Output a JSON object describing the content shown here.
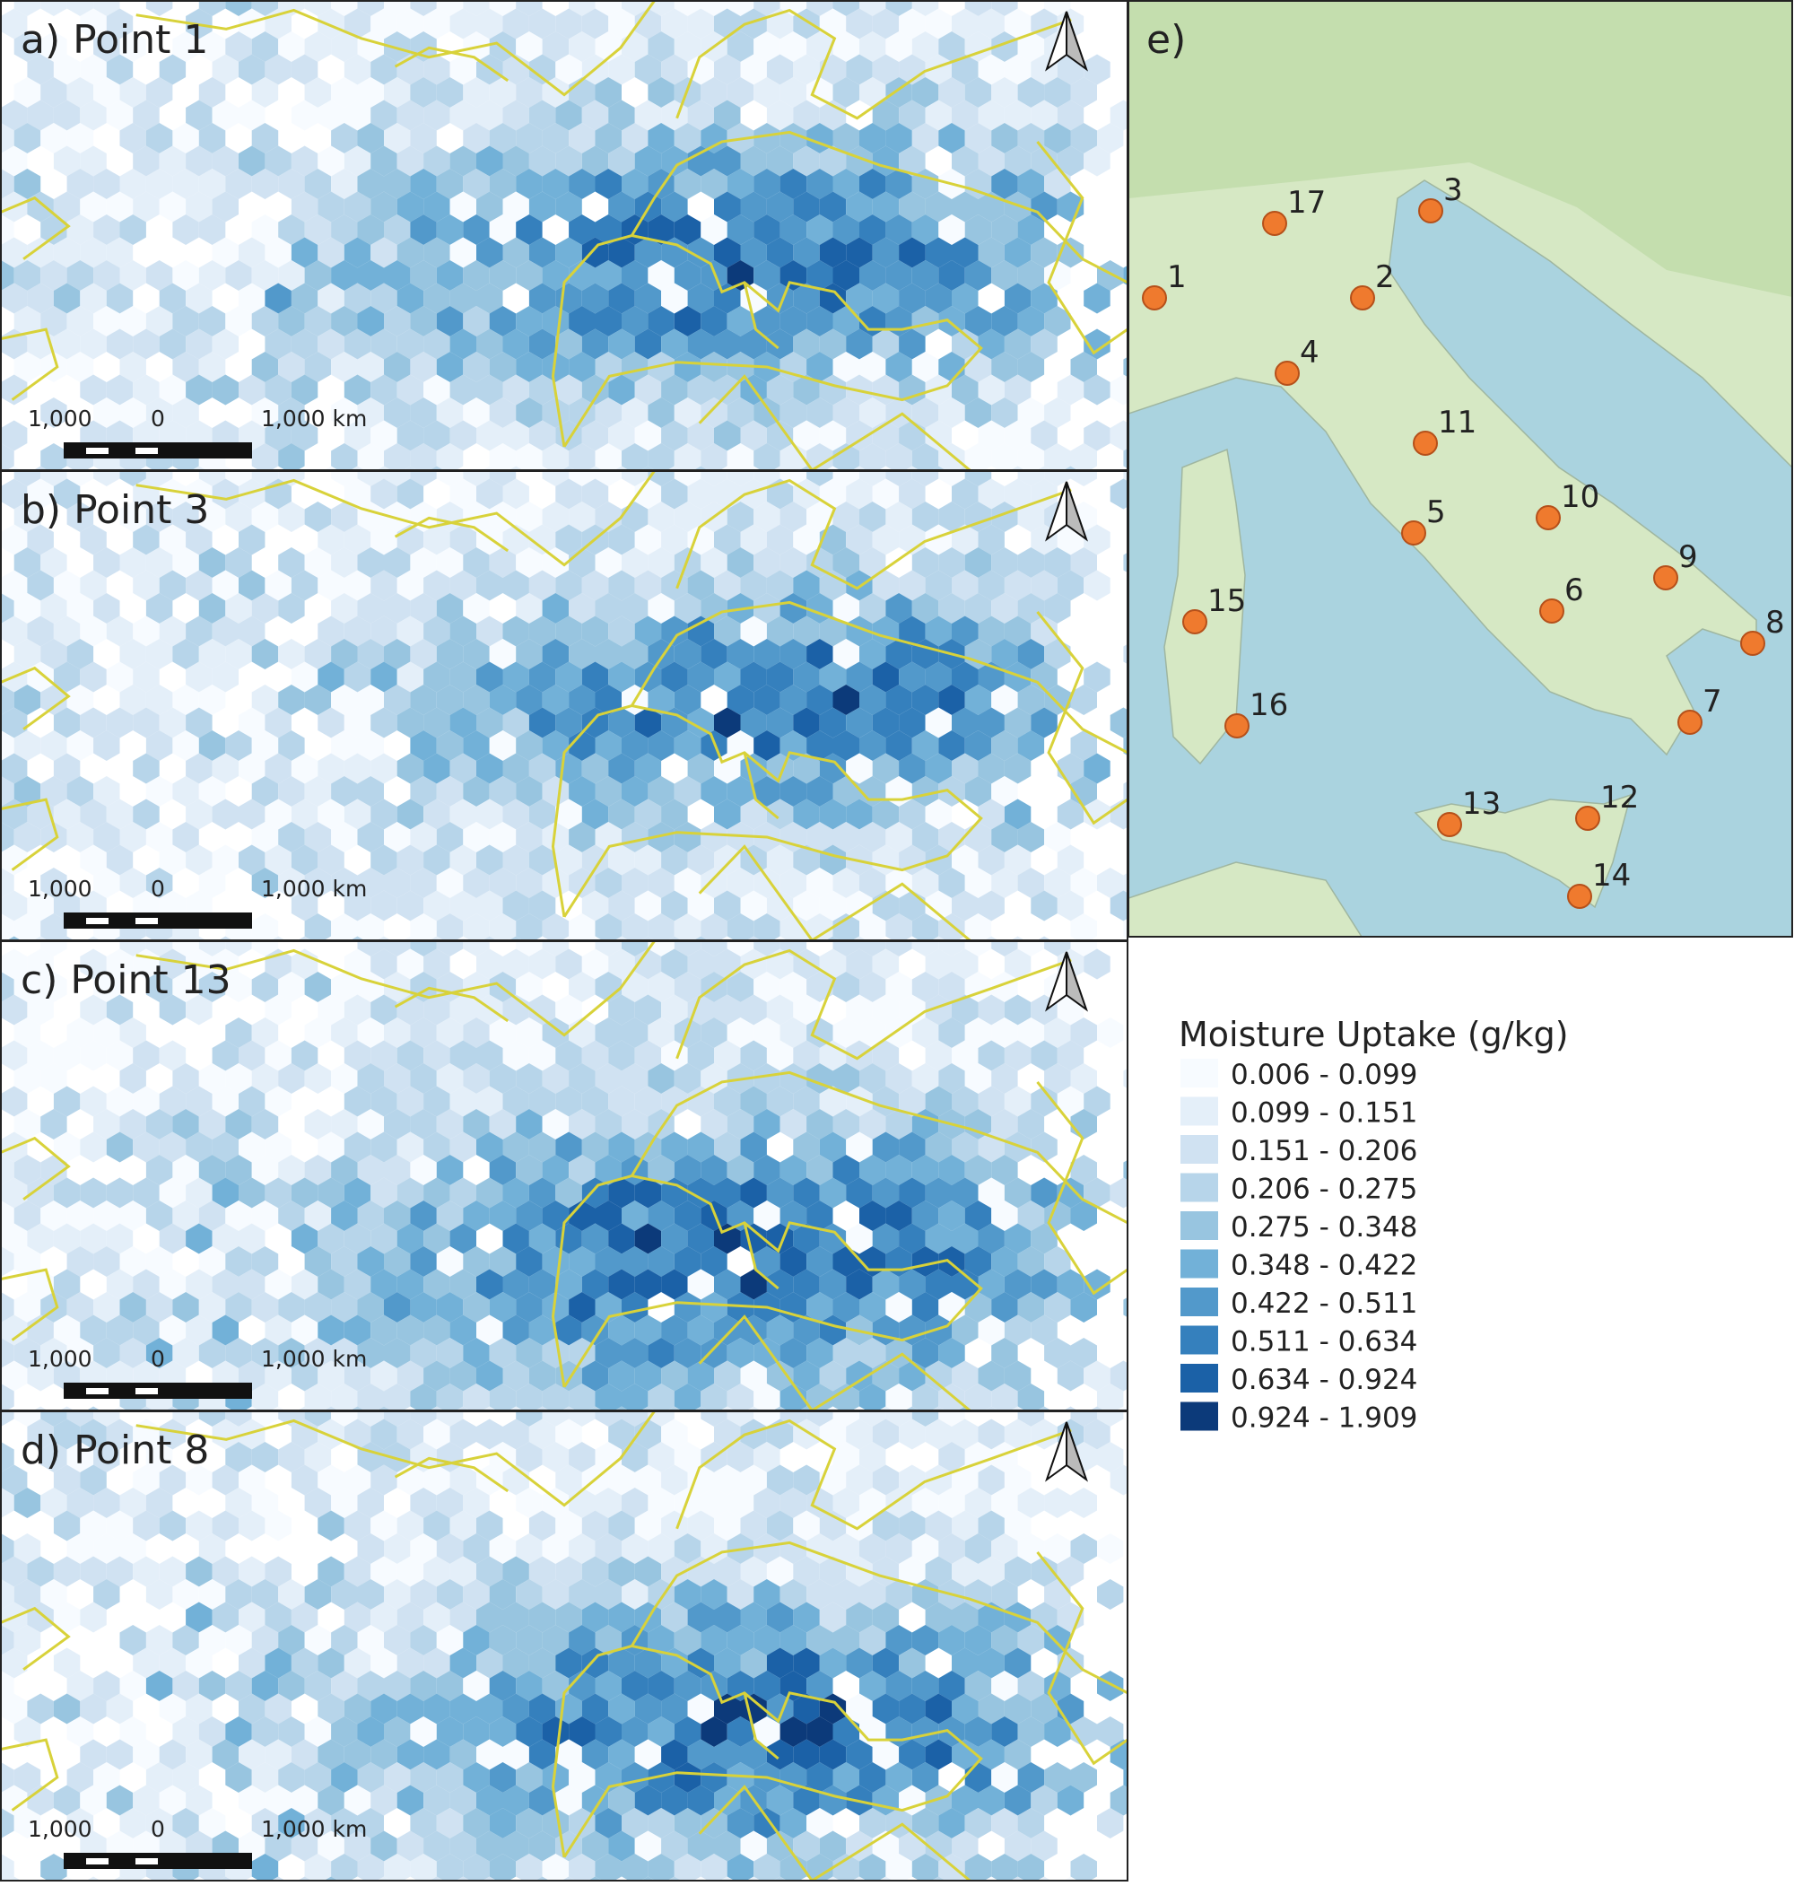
{
  "panels": [
    {
      "label": "a) Point 1",
      "scale_labels": [
        "1,000",
        "0",
        "1,000 km"
      ]
    },
    {
      "label": "b) Point 3",
      "scale_labels": [
        "1,000",
        "0",
        "1,000 km"
      ]
    },
    {
      "label": "c) Point 13",
      "scale_labels": [
        "1,000",
        "0",
        "1,000 km"
      ]
    },
    {
      "label": "d) Point 8",
      "scale_labels": [
        "1,000",
        "0",
        "1,000 km"
      ]
    }
  ],
  "location_map": {
    "label": "e)",
    "points": [
      "1",
      "17",
      "3",
      "2",
      "4",
      "11",
      "10",
      "5",
      "9",
      "15",
      "6",
      "8",
      "16",
      "7",
      "13",
      "12",
      "14"
    ]
  },
  "legend": {
    "title": "Moisture Uptake (g/kg)",
    "classes": [
      {
        "label": "0.006 - 0.099",
        "color": "#f7fbff"
      },
      {
        "label": "0.099 - 0.151",
        "color": "#e4eff9"
      },
      {
        "label": "0.151 - 0.206",
        "color": "#d0e2f2"
      },
      {
        "label": "0.206 - 0.275",
        "color": "#b7d5ea"
      },
      {
        "label": "0.275 - 0.348",
        "color": "#98c5e0"
      },
      {
        "label": "0.348 - 0.422",
        "color": "#72b1d8"
      },
      {
        "label": "0.422 - 0.511",
        "color": "#5299cb"
      },
      {
        "label": "0.511 - 0.634",
        "color": "#3580bd"
      },
      {
        "label": "0.634 - 0.924",
        "color": "#1b61a7"
      },
      {
        "label": "0.924 - 1.909",
        "color": "#0c3a7a"
      }
    ]
  }
}
